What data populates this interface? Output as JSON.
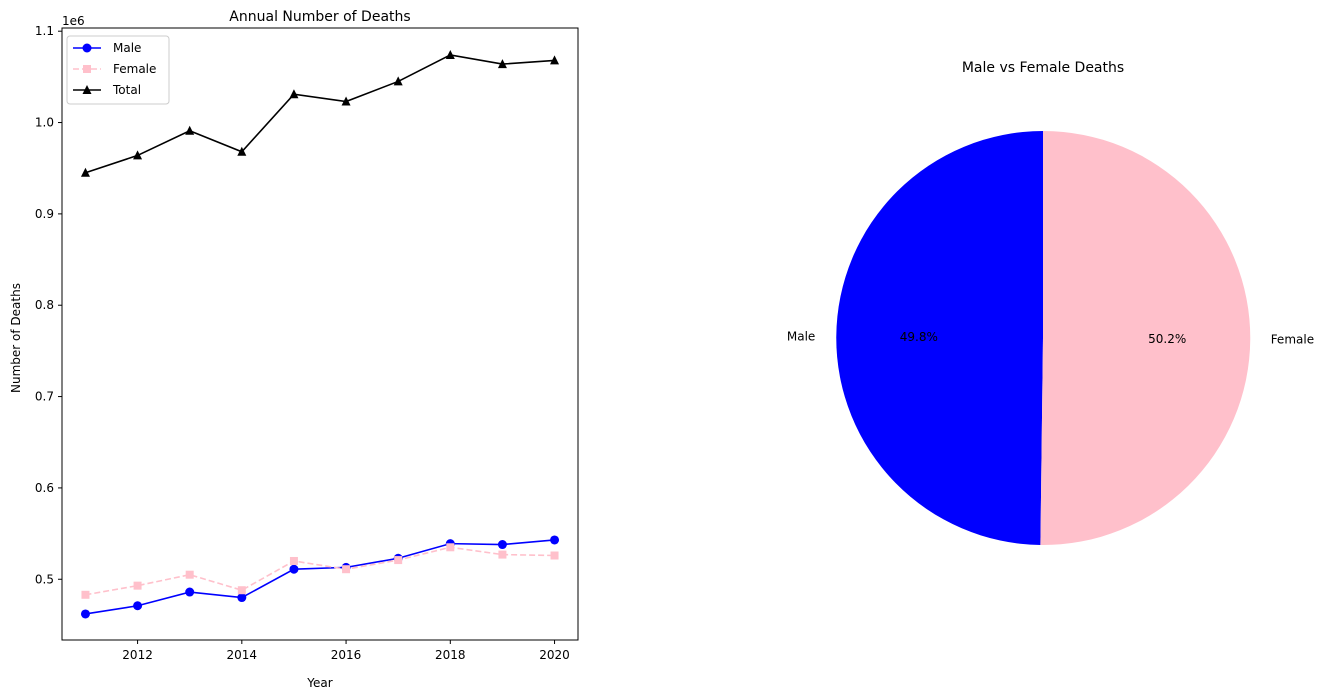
{
  "chart_data": [
    {
      "type": "line",
      "title": "Annual Number of Deaths",
      "xlabel": "Year",
      "ylabel": "Number of Deaths",
      "y_scale_label": "1e6",
      "x": [
        2011,
        2012,
        2013,
        2014,
        2015,
        2016,
        2017,
        2018,
        2019,
        2020
      ],
      "xlim": [
        2010.55,
        2020.45
      ],
      "ylim": [
        0.4335,
        1.1035
      ],
      "x_ticks": [
        2012,
        2014,
        2016,
        2018,
        2020
      ],
      "x_tick_labels": [
        "2012",
        "2014",
        "2016",
        "2018",
        "2020"
      ],
      "y_ticks": [
        0.5,
        0.6,
        0.7,
        0.8,
        0.9,
        1.0,
        1.1
      ],
      "y_tick_labels": [
        "0.5",
        "0.6",
        "0.7",
        "0.8",
        "0.9",
        "1.0",
        "1.1"
      ],
      "grid": false,
      "legend": "top-left",
      "series": [
        {
          "name": "Male",
          "color": "#0000ff",
          "marker": "circle",
          "line_style": "solid",
          "values": [
            0.462,
            0.471,
            0.486,
            0.48,
            0.511,
            0.513,
            0.523,
            0.539,
            0.538,
            0.543
          ]
        },
        {
          "name": "Female",
          "color": "#ffc0cb",
          "marker": "square",
          "line_style": "dashed",
          "values": [
            0.483,
            0.493,
            0.505,
            0.488,
            0.52,
            0.511,
            0.521,
            0.535,
            0.527,
            0.526
          ]
        },
        {
          "name": "Total",
          "color": "#000000",
          "marker": "triangle",
          "line_style": "solid",
          "values": [
            0.945,
            0.964,
            0.991,
            0.968,
            1.031,
            1.023,
            1.045,
            1.074,
            1.064,
            1.068
          ]
        }
      ]
    },
    {
      "type": "pie",
      "title": "Male vs Female Deaths",
      "start_angle": 90,
      "labels": [
        "Male",
        "Female"
      ],
      "values": [
        49.8,
        50.2
      ],
      "value_labels": [
        "49.8%",
        "50.2%"
      ],
      "colors": [
        "#0000ff",
        "#ffc0cb"
      ]
    }
  ]
}
